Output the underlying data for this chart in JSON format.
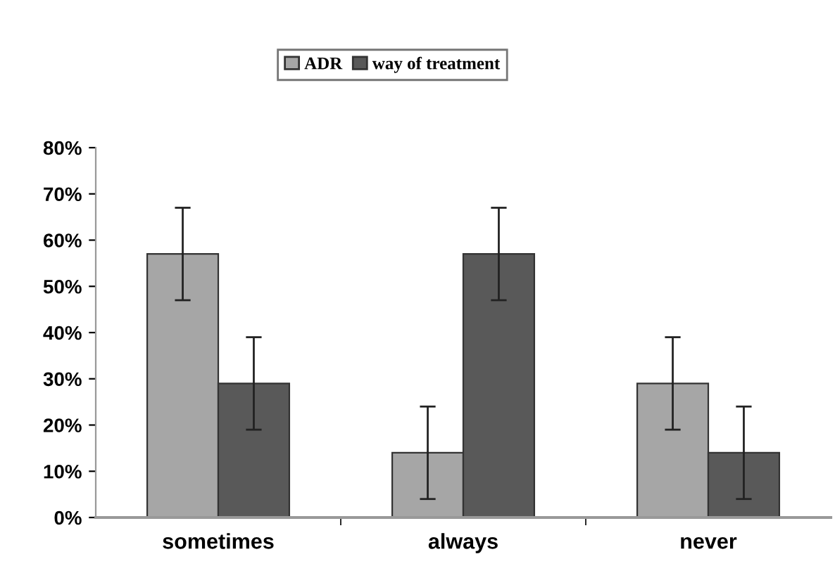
{
  "chart_data": {
    "type": "bar",
    "categories": [
      "sometimes",
      "always",
      "never"
    ],
    "series": [
      {
        "name": "ADR",
        "color": "#a6a6a6",
        "values": [
          57,
          14,
          29
        ],
        "errors": [
          10,
          10,
          10
        ]
      },
      {
        "name": "way of treatment",
        "color": "#595959",
        "values": [
          29,
          57,
          14
        ],
        "errors": [
          10,
          10,
          10
        ]
      }
    ],
    "ylim": [
      0,
      80
    ],
    "yticks": [
      {
        "value": 0,
        "label": "0%"
      },
      {
        "value": 10,
        "label": "10%"
      },
      {
        "value": 20,
        "label": "20%"
      },
      {
        "value": 30,
        "label": "30%"
      },
      {
        "value": 40,
        "label": "40%"
      },
      {
        "value": 50,
        "label": "50%"
      },
      {
        "value": 60,
        "label": "60%"
      },
      {
        "value": 70,
        "label": "70%"
      },
      {
        "value": 80,
        "label": "80%"
      }
    ],
    "legend": "top",
    "grid": false
  }
}
